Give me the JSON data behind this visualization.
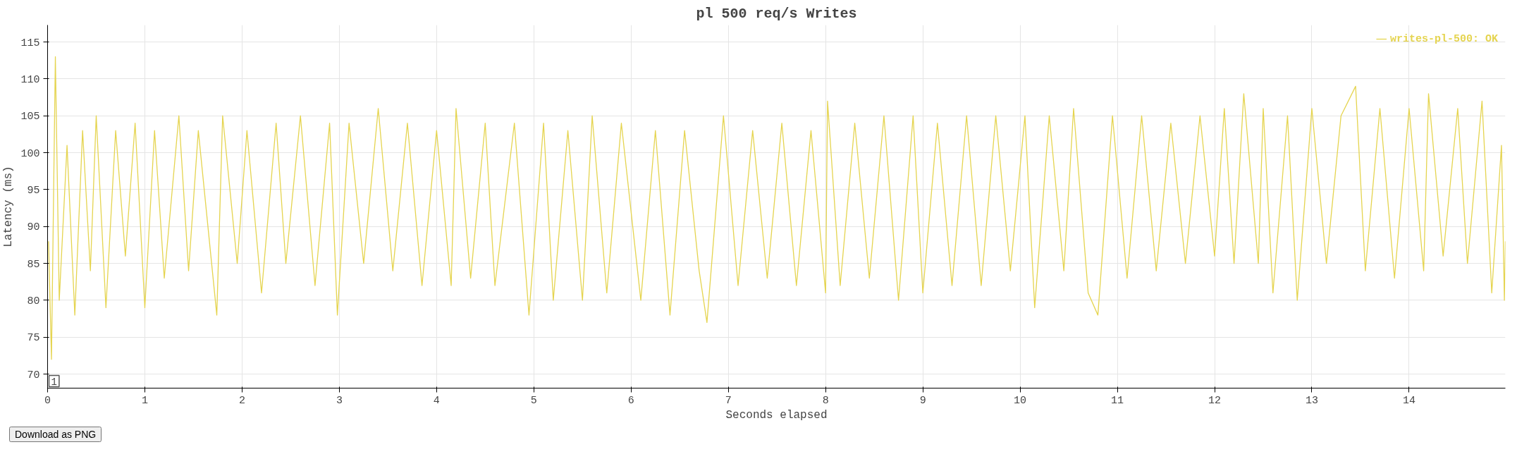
{
  "chart_data": {
    "type": "line",
    "title": "pl 500 req/s Writes",
    "xlabel": "Seconds elapsed",
    "ylabel": "Latency (ms)",
    "annotations": [
      "1",
      "Download as PNG"
    ],
    "xlim": [
      0,
      14.99
    ],
    "ylim": [
      68.1,
      117.3
    ],
    "xticks": [
      0,
      1,
      2,
      3,
      4,
      5,
      6,
      7,
      8,
      9,
      10,
      11,
      12,
      13,
      14
    ],
    "yticks": [
      70,
      75,
      80,
      85,
      90,
      95,
      100,
      105,
      110,
      115
    ],
    "grid": true,
    "legend": "top right",
    "line_style": "solid",
    "series": [
      {
        "name": "writes-pl-500: OK",
        "color": "#e5d44f",
        "x": [
          0.01,
          0.04,
          0.08,
          0.12,
          0.2,
          0.28,
          0.36,
          0.44,
          0.5,
          0.6,
          0.7,
          0.8,
          0.9,
          1.0,
          1.1,
          1.2,
          1.35,
          1.45,
          1.55,
          1.74,
          1.8,
          1.95,
          2.05,
          2.2,
          2.35,
          2.45,
          2.6,
          2.75,
          2.9,
          2.98,
          3.1,
          3.25,
          3.4,
          3.55,
          3.7,
          3.85,
          4.0,
          4.15,
          4.2,
          4.35,
          4.5,
          4.6,
          4.8,
          4.95,
          5.1,
          5.2,
          5.35,
          5.5,
          5.6,
          5.75,
          5.9,
          6.1,
          6.25,
          6.4,
          6.55,
          6.7,
          6.78,
          6.95,
          7.1,
          7.25,
          7.4,
          7.55,
          7.7,
          7.85,
          8.0,
          8.02,
          8.15,
          8.3,
          8.45,
          8.6,
          8.75,
          8.9,
          9.0,
          9.15,
          9.3,
          9.45,
          9.6,
          9.75,
          9.9,
          10.05,
          10.15,
          10.3,
          10.45,
          10.55,
          10.7,
          10.8,
          10.95,
          11.1,
          11.25,
          11.4,
          11.55,
          11.7,
          11.85,
          12.0,
          12.1,
          12.2,
          12.3,
          12.45,
          12.5,
          12.6,
          12.75,
          12.85,
          13.0,
          13.15,
          13.3,
          13.45,
          13.55,
          13.7,
          13.85,
          14.0,
          14.15,
          14.2,
          14.35,
          14.5,
          14.6,
          14.75,
          14.85,
          14.95,
          14.98,
          14.99
        ],
        "values": [
          88,
          72,
          113,
          80,
          101,
          78,
          103,
          84,
          105,
          79,
          103,
          86,
          104,
          79,
          103,
          83,
          105,
          84,
          103,
          78,
          105,
          85,
          103,
          81,
          104,
          85,
          105,
          82,
          104,
          78,
          104,
          85,
          106,
          84,
          104,
          82,
          103,
          82,
          106,
          83,
          104,
          82,
          104,
          78,
          104,
          80,
          103,
          80,
          105,
          81,
          104,
          80,
          103,
          78,
          103,
          84,
          77,
          105,
          82,
          103,
          83,
          104,
          82,
          103,
          81,
          107,
          82,
          104,
          83,
          105,
          80,
          105,
          81,
          104,
          82,
          105,
          82,
          105,
          84,
          105,
          79,
          105,
          84,
          106,
          81,
          78,
          105,
          83,
          105,
          84,
          104,
          85,
          105,
          86,
          106,
          85,
          108,
          85,
          106,
          81,
          105,
          80,
          106,
          85,
          105,
          109,
          84,
          106,
          83,
          106,
          84,
          108,
          86,
          106,
          85,
          107,
          81,
          101,
          80,
          88
        ]
      }
    ]
  }
}
